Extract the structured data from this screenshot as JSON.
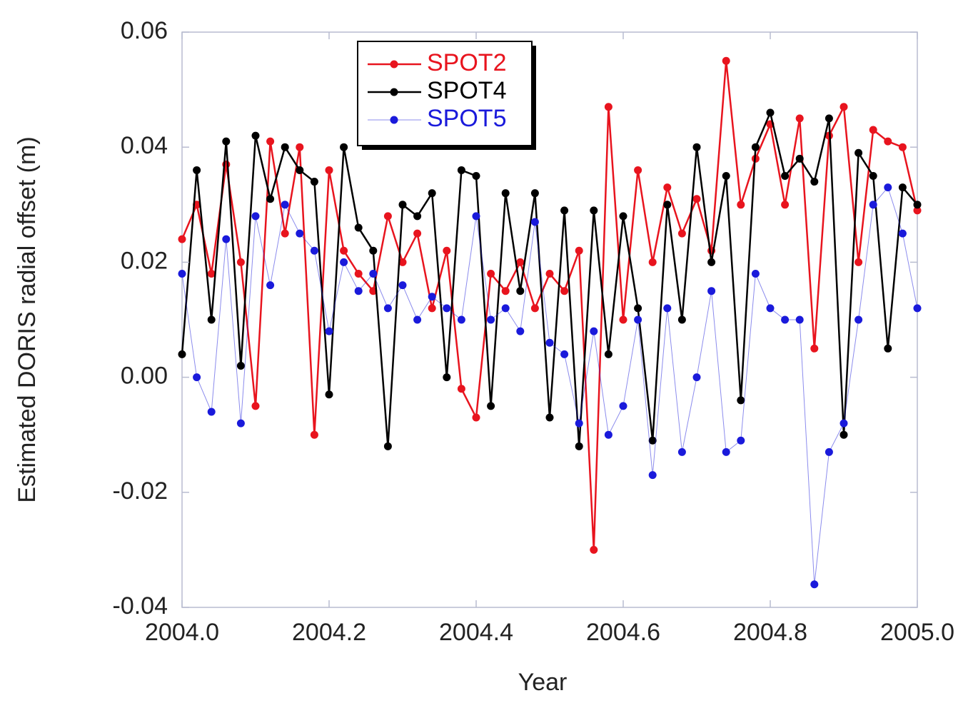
{
  "chart_data": {
    "type": "line",
    "xlabel": "Year",
    "ylabel": "Estimated DORIS radial offset (m)",
    "x": [
      2004.0,
      2004.02,
      2004.04,
      2004.06,
      2004.08,
      2004.1,
      2004.12,
      2004.14,
      2004.16,
      2004.18,
      2004.2,
      2004.22,
      2004.24,
      2004.26,
      2004.28,
      2004.3,
      2004.32,
      2004.34,
      2004.36,
      2004.38,
      2004.4,
      2004.42,
      2004.44,
      2004.46,
      2004.48,
      2004.5,
      2004.52,
      2004.54,
      2004.56,
      2004.58,
      2004.6,
      2004.62,
      2004.64,
      2004.66,
      2004.68,
      2004.7,
      2004.72,
      2004.74,
      2004.76,
      2004.78,
      2004.8,
      2004.82,
      2004.84,
      2004.86,
      2004.88,
      2004.9,
      2004.92,
      2004.94,
      2004.96,
      2004.98,
      2005.0
    ],
    "series": [
      {
        "name": "SPOT2",
        "color": "#e8141e",
        "values": [
          0.024,
          0.03,
          0.018,
          0.037,
          0.02,
          -0.005,
          0.041,
          0.025,
          0.04,
          -0.01,
          0.036,
          0.022,
          0.018,
          0.015,
          0.028,
          0.02,
          0.025,
          0.012,
          0.022,
          -0.002,
          -0.007,
          0.018,
          0.015,
          0.02,
          0.012,
          0.018,
          0.015,
          0.022,
          -0.03,
          0.047,
          0.01,
          0.036,
          0.02,
          0.033,
          0.025,
          0.031,
          0.022,
          0.055,
          0.03,
          0.038,
          0.044,
          0.03,
          0.045,
          0.005,
          0.042,
          0.047,
          0.02,
          0.043,
          0.041,
          0.04,
          0.029
        ]
      },
      {
        "name": "SPOT4",
        "color": "#000000",
        "values": [
          0.004,
          0.036,
          0.01,
          0.041,
          0.002,
          0.042,
          0.031,
          0.04,
          0.036,
          0.034,
          -0.003,
          0.04,
          0.026,
          0.022,
          -0.012,
          0.03,
          0.028,
          0.032,
          0.0,
          0.036,
          0.035,
          -0.005,
          0.032,
          0.015,
          0.032,
          -0.007,
          0.029,
          -0.012,
          0.029,
          0.004,
          0.028,
          0.012,
          -0.011,
          0.03,
          0.01,
          0.04,
          0.02,
          0.035,
          -0.004,
          0.04,
          0.046,
          0.035,
          0.038,
          0.034,
          0.045,
          -0.01,
          0.039,
          0.035,
          0.005,
          0.033,
          0.03
        ]
      },
      {
        "name": "SPOT5",
        "color": "#1a1adb",
        "values": [
          0.018,
          0.0,
          -0.006,
          0.024,
          -0.008,
          0.028,
          0.016,
          0.03,
          0.025,
          0.022,
          0.008,
          0.02,
          0.015,
          0.018,
          0.012,
          0.016,
          0.01,
          0.014,
          0.012,
          0.01,
          0.028,
          0.01,
          0.012,
          0.008,
          0.027,
          0.006,
          0.004,
          -0.008,
          0.008,
          -0.01,
          -0.005,
          0.01,
          -0.017,
          0.012,
          -0.013,
          0.0,
          0.015,
          -0.013,
          -0.011,
          0.018,
          0.012,
          0.01,
          0.01,
          -0.036,
          -0.013,
          -0.008,
          0.01,
          0.03,
          0.033,
          0.025,
          0.012
        ]
      }
    ],
    "xlim": [
      2004.0,
      2005.0
    ],
    "xticks": [
      {
        "value": 2004.0,
        "label": "2004.0"
      },
      {
        "value": 2004.2,
        "label": "2004.2"
      },
      {
        "value": 2004.4,
        "label": "2004.4"
      },
      {
        "value": 2004.6,
        "label": "2004.6"
      },
      {
        "value": 2004.8,
        "label": "2004.8"
      },
      {
        "value": 2005.0,
        "label": "2005.0"
      }
    ],
    "ylim": [
      -0.04,
      0.06
    ],
    "yticks": [
      {
        "value": -0.04,
        "label": "-0.04"
      },
      {
        "value": -0.02,
        "label": "-0.02"
      },
      {
        "value": 0,
        "label": "0.00"
      },
      {
        "value": 0.02,
        "label": "0.02"
      },
      {
        "value": 0.04,
        "label": "0.04"
      },
      {
        "value": 0.06,
        "label": "0.06"
      }
    ],
    "legend": "upper-left"
  }
}
